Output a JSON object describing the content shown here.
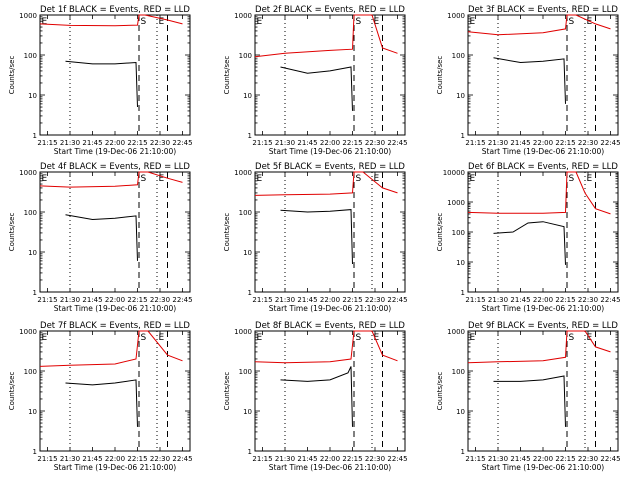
{
  "chart_data": [
    {
      "type": "line",
      "title": "Det 1f BLACK = Events, RED = LLD",
      "xlabel": "Start Time (19-Dec-06 21:10:00)",
      "ylabel": "Counts/sec",
      "y_scale": "log",
      "ylim": [
        1,
        1000
      ],
      "xlim": [
        "21:10",
        "22:50"
      ],
      "x_ticks": [
        "21:15",
        "21:30",
        "21:45",
        "22:00",
        "22:15",
        "22:30",
        "22:45"
      ],
      "y_ticks": [
        "1",
        "10",
        "100",
        "1000"
      ],
      "markers": [
        {
          "label": "E",
          "time": "21:10",
          "style": "dotted"
        },
        {
          "label": "",
          "time": "21:30",
          "style": "dotted"
        },
        {
          "label": "S",
          "time": "22:16",
          "style": "dashed"
        },
        {
          "label": "E",
          "time": "22:28",
          "style": "dotted"
        },
        {
          "label": "",
          "time": "22:35",
          "style": "dashed"
        }
      ],
      "series": [
        {
          "color": "#e00000",
          "x": [
            "21:10",
            "21:30",
            "22:00",
            "22:15",
            "22:16",
            "22:20",
            "22:35",
            "22:45"
          ],
          "y": [
            600,
            550,
            540,
            560,
            1000,
            1000,
            750,
            600
          ]
        },
        {
          "color": "#000000",
          "x": [
            "21:27",
            "21:45",
            "22:00",
            "22:14",
            "22:15"
          ],
          "y": [
            70,
            60,
            60,
            65,
            5
          ]
        }
      ]
    },
    {
      "type": "line",
      "title": "Det 2f BLACK = Events, RED = LLD",
      "xlabel": "Start Time (19-Dec-06 21:10:00)",
      "ylabel": "Counts/sec",
      "y_scale": "log",
      "ylim": [
        1,
        1000
      ],
      "xlim": [
        "21:10",
        "22:50"
      ],
      "x_ticks": [
        "21:15",
        "21:30",
        "21:45",
        "22:00",
        "22:15",
        "22:30",
        "22:45"
      ],
      "y_ticks": [
        "1",
        "10",
        "100",
        "1000"
      ],
      "markers": [
        {
          "label": "E",
          "time": "21:10",
          "style": "dotted"
        },
        {
          "label": "",
          "time": "21:30",
          "style": "dotted"
        },
        {
          "label": "S",
          "time": "22:16",
          "style": "dashed"
        },
        {
          "label": "E",
          "time": "22:28",
          "style": "dotted"
        },
        {
          "label": "",
          "time": "22:35",
          "style": "dashed"
        }
      ],
      "series": [
        {
          "color": "#e00000",
          "x": [
            "21:10",
            "21:30",
            "22:00",
            "22:15",
            "22:16",
            "22:28",
            "22:35",
            "22:45"
          ],
          "y": [
            90,
            110,
            130,
            140,
            1000,
            1000,
            150,
            110
          ]
        },
        {
          "color": "#000000",
          "x": [
            "21:27",
            "21:45",
            "22:00",
            "22:14",
            "22:15"
          ],
          "y": [
            50,
            35,
            40,
            50,
            4
          ]
        }
      ]
    },
    {
      "type": "line",
      "title": "Det 3f BLACK = Events, RED = LLD",
      "xlabel": "Start Time (19-Dec-06 21:10:00)",
      "ylabel": "Counts/sec",
      "y_scale": "log",
      "ylim": [
        1,
        1000
      ],
      "xlim": [
        "21:10",
        "22:50"
      ],
      "x_ticks": [
        "21:15",
        "21:30",
        "21:45",
        "22:00",
        "22:15",
        "22:30",
        "22:45"
      ],
      "y_ticks": [
        "1",
        "10",
        "100",
        "1000"
      ],
      "markers": [
        {
          "label": "E",
          "time": "21:10",
          "style": "dotted"
        },
        {
          "label": "",
          "time": "21:30",
          "style": "dotted"
        },
        {
          "label": "S",
          "time": "22:16",
          "style": "dashed"
        },
        {
          "label": "E",
          "time": "22:28",
          "style": "dotted"
        },
        {
          "label": "",
          "time": "22:35",
          "style": "dashed"
        }
      ],
      "series": [
        {
          "color": "#e00000",
          "x": [
            "21:10",
            "21:30",
            "22:00",
            "22:15",
            "22:16",
            "22:22",
            "22:35",
            "22:45"
          ],
          "y": [
            380,
            320,
            360,
            450,
            1000,
            1000,
            600,
            450
          ]
        },
        {
          "color": "#000000",
          "x": [
            "21:27",
            "21:45",
            "22:00",
            "22:14",
            "22:15"
          ],
          "y": [
            85,
            65,
            70,
            80,
            6
          ]
        }
      ]
    },
    {
      "type": "line",
      "title": "Det 4f BLACK = Events, RED = LLD",
      "xlabel": "Start Time (19-Dec-06 21:10:00)",
      "ylabel": "Counts/sec",
      "y_scale": "log",
      "ylim": [
        1,
        1000
      ],
      "xlim": [
        "21:10",
        "22:50"
      ],
      "x_ticks": [
        "21:15",
        "21:30",
        "21:45",
        "22:00",
        "22:15",
        "22:30",
        "22:45"
      ],
      "y_ticks": [
        "1",
        "10",
        "100",
        "1000"
      ],
      "markers": [
        {
          "label": "E",
          "time": "21:10",
          "style": "dotted"
        },
        {
          "label": "",
          "time": "21:30",
          "style": "dotted"
        },
        {
          "label": "S",
          "time": "22:16",
          "style": "dashed"
        },
        {
          "label": "E",
          "time": "22:28",
          "style": "dotted"
        },
        {
          "label": "",
          "time": "22:35",
          "style": "dashed"
        }
      ],
      "series": [
        {
          "color": "#e00000",
          "x": [
            "21:10",
            "21:30",
            "22:00",
            "22:15",
            "22:16",
            "22:22",
            "22:35",
            "22:45"
          ],
          "y": [
            450,
            420,
            440,
            480,
            1000,
            1000,
            700,
            550
          ]
        },
        {
          "color": "#000000",
          "x": [
            "21:27",
            "21:45",
            "22:00",
            "22:14",
            "22:15"
          ],
          "y": [
            85,
            65,
            70,
            80,
            6
          ]
        }
      ]
    },
    {
      "type": "line",
      "title": "Det 5f BLACK = Events, RED = LLD",
      "xlabel": "Start Time (19-Dec-06 21:10:00)",
      "ylabel": "Counts/sec",
      "y_scale": "log",
      "ylim": [
        1,
        1000
      ],
      "xlim": [
        "21:10",
        "22:50"
      ],
      "x_ticks": [
        "21:15",
        "21:30",
        "21:45",
        "22:00",
        "22:15",
        "22:30",
        "22:45"
      ],
      "y_ticks": [
        "1",
        "10",
        "100",
        "1000"
      ],
      "markers": [
        {
          "label": "E",
          "time": "21:10",
          "style": "dotted"
        },
        {
          "label": "",
          "time": "21:30",
          "style": "dotted"
        },
        {
          "label": "S",
          "time": "22:16",
          "style": "dashed"
        },
        {
          "label": "E",
          "time": "22:28",
          "style": "dotted"
        },
        {
          "label": "",
          "time": "22:35",
          "style": "dashed"
        }
      ],
      "series": [
        {
          "color": "#e00000",
          "x": [
            "21:10",
            "21:30",
            "22:00",
            "22:15",
            "22:16",
            "22:22",
            "22:35",
            "22:45"
          ],
          "y": [
            260,
            270,
            280,
            300,
            1000,
            1000,
            400,
            300
          ]
        },
        {
          "color": "#000000",
          "x": [
            "21:27",
            "21:45",
            "22:00",
            "22:14",
            "22:15"
          ],
          "y": [
            110,
            100,
            105,
            115,
            5
          ]
        }
      ]
    },
    {
      "type": "line",
      "title": "Det 6f BLACK = Events, RED = LLD",
      "xlabel": "Start Time (19-Dec-06 21:10:00)",
      "ylabel": "Counts/sec",
      "y_scale": "log",
      "ylim": [
        1,
        10000
      ],
      "xlim": [
        "21:10",
        "22:50"
      ],
      "x_ticks": [
        "21:15",
        "21:30",
        "21:45",
        "22:00",
        "22:15",
        "22:30",
        "22:45"
      ],
      "y_ticks": [
        "1",
        "10",
        "100",
        "1000",
        "10000"
      ],
      "markers": [
        {
          "label": "E",
          "time": "21:10",
          "style": "dotted"
        },
        {
          "label": "",
          "time": "21:30",
          "style": "dotted"
        },
        {
          "label": "S",
          "time": "22:16",
          "style": "dashed"
        },
        {
          "label": "E",
          "time": "22:28",
          "style": "dotted"
        },
        {
          "label": "",
          "time": "22:35",
          "style": "dashed"
        }
      ],
      "series": [
        {
          "color": "#e00000",
          "x": [
            "21:10",
            "21:30",
            "22:00",
            "22:15",
            "22:16",
            "22:22",
            "22:28",
            "22:35",
            "22:45"
          ],
          "y": [
            450,
            420,
            420,
            450,
            10000,
            10000,
            2000,
            600,
            400
          ]
        },
        {
          "color": "#000000",
          "x": [
            "21:27",
            "21:40",
            "21:50",
            "22:00",
            "22:14",
            "22:15"
          ],
          "y": [
            90,
            100,
            200,
            220,
            150,
            8
          ]
        }
      ]
    },
    {
      "type": "line",
      "title": "Det 7f BLACK = Events, RED = LLD",
      "xlabel": "Start Time (19-Dec-06 21:10:00)",
      "ylabel": "Counts/sec",
      "y_scale": "log",
      "ylim": [
        1,
        1000
      ],
      "xlim": [
        "21:10",
        "22:50"
      ],
      "x_ticks": [
        "21:15",
        "21:30",
        "21:45",
        "22:00",
        "22:15",
        "22:30",
        "22:45"
      ],
      "y_ticks": [
        "1",
        "10",
        "100",
        "1000"
      ],
      "markers": [
        {
          "label": "E",
          "time": "21:10",
          "style": "dotted"
        },
        {
          "label": "",
          "time": "21:30",
          "style": "dotted"
        },
        {
          "label": "S",
          "time": "22:16",
          "style": "dashed"
        },
        {
          "label": "E",
          "time": "22:28",
          "style": "dotted"
        },
        {
          "label": "",
          "time": "22:35",
          "style": "dashed"
        }
      ],
      "series": [
        {
          "color": "#e00000",
          "x": [
            "21:10",
            "21:30",
            "22:00",
            "22:14",
            "22:16",
            "22:22",
            "22:35",
            "22:45"
          ],
          "y": [
            130,
            140,
            150,
            200,
            1000,
            1000,
            250,
            180
          ]
        },
        {
          "color": "#000000",
          "x": [
            "21:27",
            "21:45",
            "22:00",
            "22:14",
            "22:15"
          ],
          "y": [
            50,
            45,
            50,
            60,
            4
          ]
        }
      ]
    },
    {
      "type": "line",
      "title": "Det 8f BLACK = Events, RED = LLD",
      "xlabel": "Start Time (19-Dec-06 21:10:00)",
      "ylabel": "Counts/sec",
      "y_scale": "log",
      "ylim": [
        1,
        1000
      ],
      "xlim": [
        "21:10",
        "22:50"
      ],
      "x_ticks": [
        "21:15",
        "21:30",
        "21:45",
        "22:00",
        "22:15",
        "22:30",
        "22:45"
      ],
      "y_ticks": [
        "1",
        "10",
        "100",
        "1000"
      ],
      "markers": [
        {
          "label": "E",
          "time": "21:10",
          "style": "dotted"
        },
        {
          "label": "",
          "time": "21:30",
          "style": "dotted"
        },
        {
          "label": "S",
          "time": "22:16",
          "style": "dashed"
        },
        {
          "label": "E",
          "time": "22:28",
          "style": "dotted"
        },
        {
          "label": "",
          "time": "22:35",
          "style": "dashed"
        }
      ],
      "series": [
        {
          "color": "#e00000",
          "x": [
            "21:10",
            "21:30",
            "22:00",
            "22:14",
            "22:16",
            "22:28",
            "22:35",
            "22:45"
          ],
          "y": [
            170,
            160,
            170,
            200,
            1000,
            1000,
            250,
            180
          ]
        },
        {
          "color": "#000000",
          "x": [
            "21:27",
            "21:45",
            "22:00",
            "22:12",
            "22:14",
            "22:15"
          ],
          "y": [
            60,
            55,
            60,
            90,
            130,
            4
          ]
        }
      ]
    },
    {
      "type": "line",
      "title": "Det 9f BLACK = Events, RED = LLD",
      "xlabel": "Start Time (19-Dec-06 21:10:00)",
      "ylabel": "Counts/sec",
      "y_scale": "log",
      "ylim": [
        1,
        1000
      ],
      "xlim": [
        "21:10",
        "22:50"
      ],
      "x_ticks": [
        "21:15",
        "21:30",
        "21:45",
        "22:00",
        "22:15",
        "22:30",
        "22:45"
      ],
      "y_ticks": [
        "1",
        "10",
        "100",
        "1000"
      ],
      "markers": [
        {
          "label": "E",
          "time": "21:10",
          "style": "dotted"
        },
        {
          "label": "",
          "time": "21:30",
          "style": "dotted"
        },
        {
          "label": "S",
          "time": "22:16",
          "style": "dashed"
        },
        {
          "label": "E",
          "time": "22:28",
          "style": "dotted"
        },
        {
          "label": "",
          "time": "22:35",
          "style": "dashed"
        }
      ],
      "series": [
        {
          "color": "#e00000",
          "x": [
            "21:10",
            "21:30",
            "22:00",
            "22:15",
            "22:16",
            "22:28",
            "22:35",
            "22:45"
          ],
          "y": [
            160,
            170,
            180,
            220,
            1000,
            1000,
            400,
            300
          ]
        },
        {
          "color": "#000000",
          "x": [
            "21:27",
            "21:45",
            "22:00",
            "22:14",
            "22:15"
          ],
          "y": [
            55,
            55,
            60,
            75,
            4
          ]
        }
      ]
    }
  ]
}
